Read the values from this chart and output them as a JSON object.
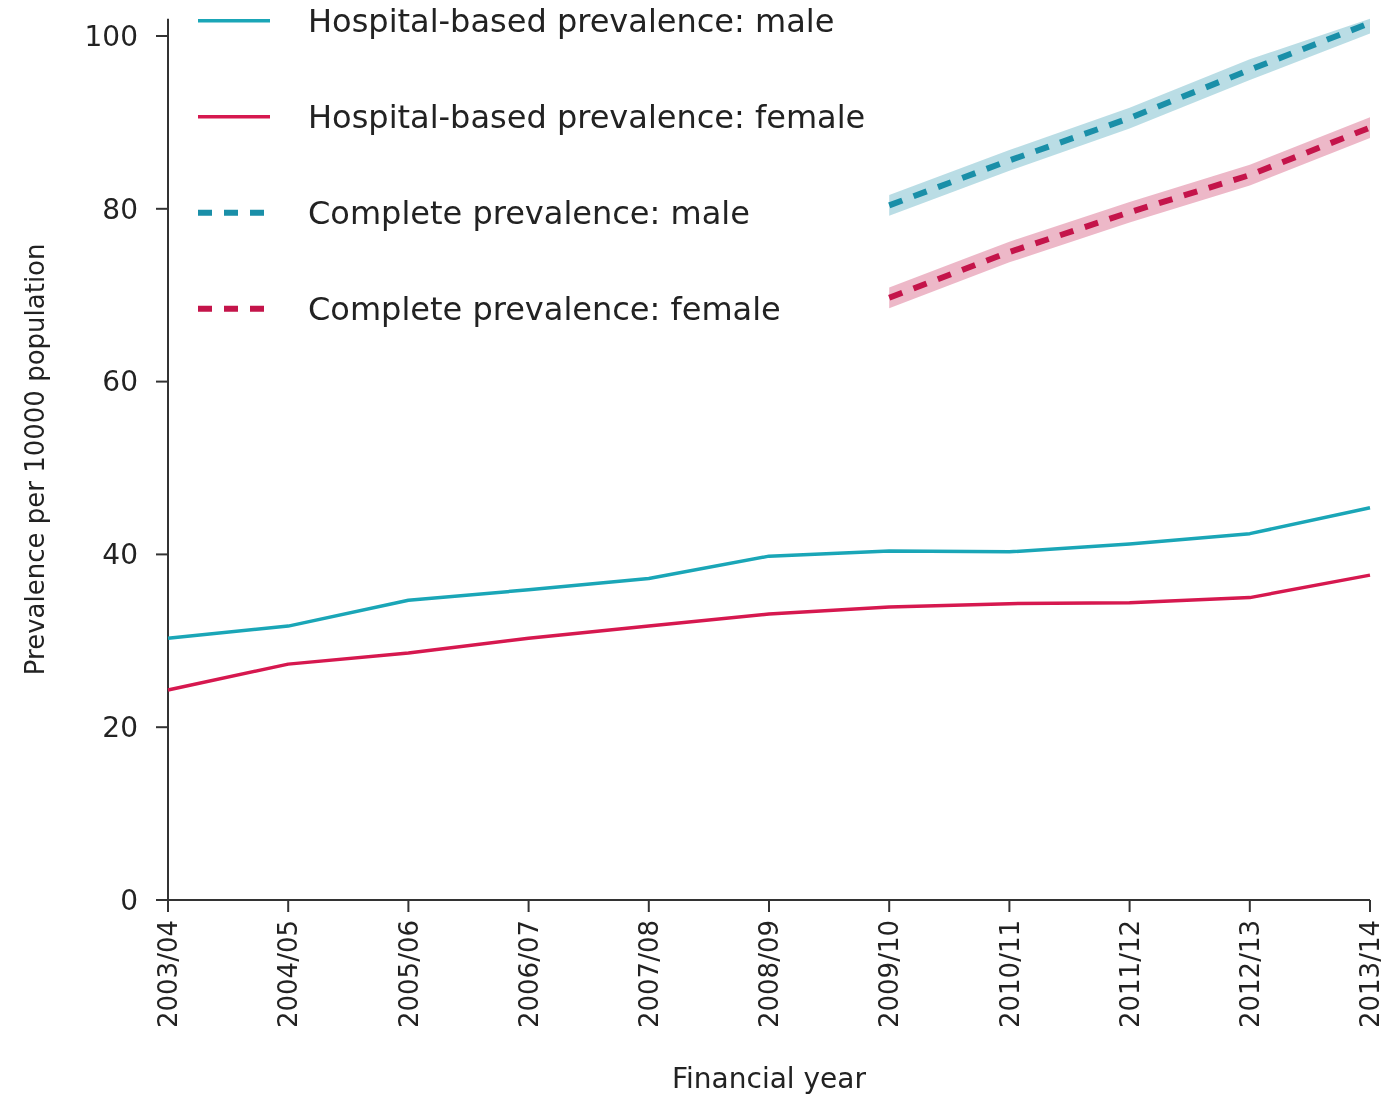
{
  "chart_data": {
    "type": "line",
    "xlabel": "Financial year",
    "ylabel": "Prevalence per 10000 population",
    "categories": [
      "2003/04",
      "2004/05",
      "2005/06",
      "2006/07",
      "2007/08",
      "2008/09",
      "2009/10",
      "2010/11",
      "2011/12",
      "2012/13",
      "2013/14"
    ],
    "ylim": [
      0,
      102
    ],
    "yticks": [
      0,
      20,
      40,
      60,
      80,
      100
    ],
    "grid": false,
    "legend": "top left",
    "marker": "none",
    "series": [
      {
        "name": "Hospital-based prevalence: male",
        "color": "#1aa6b7",
        "line_style": "solid",
        "values": [
          30.3,
          31.7,
          34.7,
          35.9,
          37.2,
          39.8,
          40.4,
          40.3,
          41.2,
          42.4,
          45.4
        ]
      },
      {
        "name": "Hospital-based prevalence: female",
        "color": "#d6184f",
        "line_style": "solid",
        "values": [
          24.3,
          27.3,
          28.6,
          30.3,
          31.7,
          33.1,
          33.9,
          34.3,
          34.4,
          35.0,
          37.6
        ]
      },
      {
        "name": "Complete prevalence: male",
        "color": "#1a8fa8",
        "line_style": "dashed",
        "values": [
          null,
          null,
          null,
          null,
          null,
          null,
          80.4,
          85.6,
          90.5,
          96.1,
          101.5
        ],
        "lower": [
          null,
          null,
          null,
          null,
          null,
          null,
          79.2,
          84.4,
          89.3,
          94.9,
          100.3
        ],
        "upper": [
          null,
          null,
          null,
          null,
          null,
          null,
          81.6,
          86.8,
          91.7,
          97.3,
          102.0
        ]
      },
      {
        "name": "Complete prevalence: female",
        "color": "#c4144a",
        "line_style": "dashed",
        "values": [
          null,
          null,
          null,
          null,
          null,
          null,
          69.7,
          75.0,
          79.6,
          83.9,
          89.4
        ],
        "lower": [
          null,
          null,
          null,
          null,
          null,
          null,
          68.5,
          73.8,
          78.4,
          82.7,
          88.2
        ],
        "upper": [
          null,
          null,
          null,
          null,
          null,
          null,
          70.9,
          76.2,
          80.8,
          85.1,
          90.6
        ]
      }
    ]
  }
}
